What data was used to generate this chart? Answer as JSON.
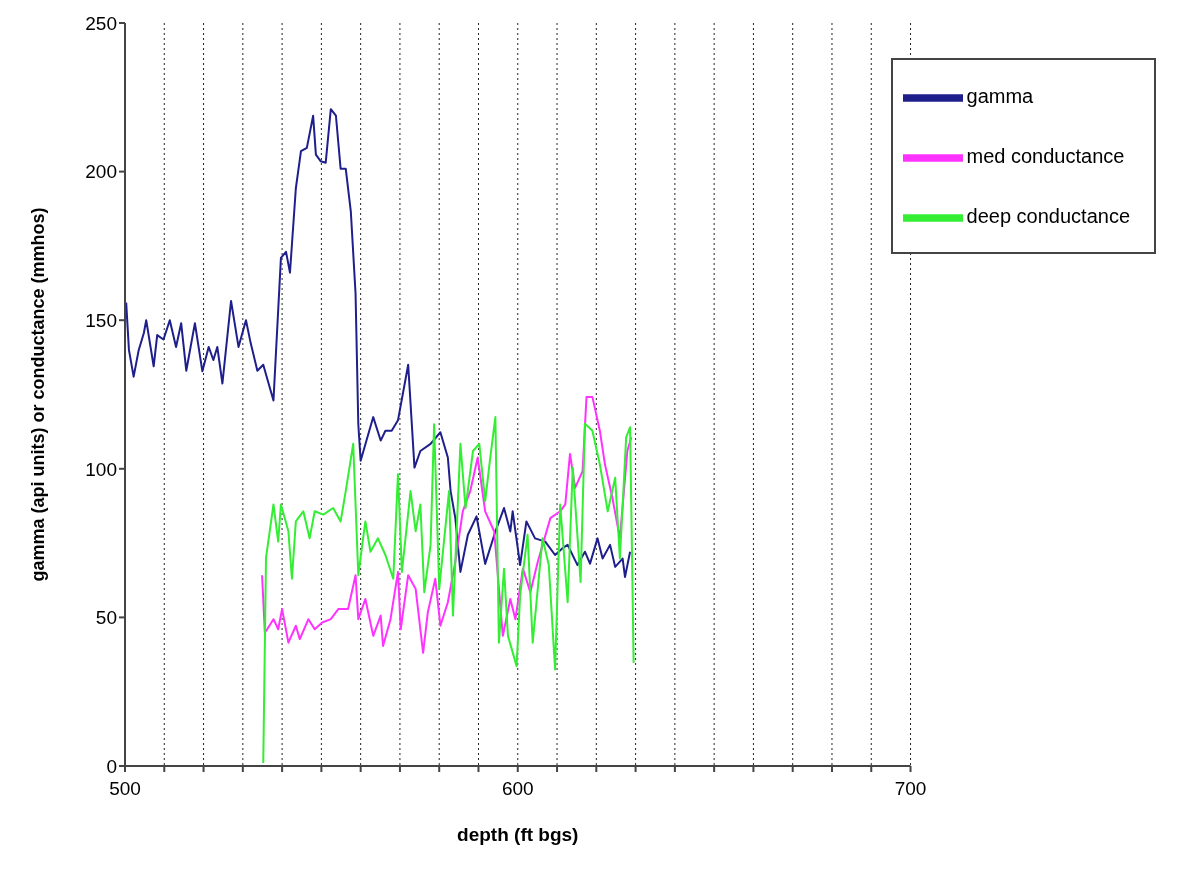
{
  "chart_data": {
    "type": "line",
    "xlabel": "depth (ft bgs)",
    "ylabel": "gamma (api units) or conductance (mmhos)",
    "xlim": [
      500,
      700
    ],
    "xticks": [
      500,
      {
        "value": 510,
        "label": null
      },
      {
        "value": 520,
        "label": null
      },
      {
        "value": 530,
        "label": null
      },
      {
        "value": 540,
        "label": null
      },
      {
        "value": 550,
        "label": null
      },
      {
        "value": 560,
        "label": null
      },
      {
        "value": 570,
        "label": null
      },
      {
        "value": 580,
        "label": null
      },
      {
        "value": 590,
        "label": null
      },
      600,
      {
        "value": 610,
        "label": null
      },
      {
        "value": 620,
        "label": null
      },
      {
        "value": 630,
        "label": null
      },
      {
        "value": 640,
        "label": null
      },
      {
        "value": 650,
        "label": null
      },
      {
        "value": 660,
        "label": null
      },
      {
        "value": 670,
        "label": null
      },
      {
        "value": 680,
        "label": null
      },
      {
        "value": 690,
        "label": null
      },
      700
    ],
    "ylim": [
      0,
      250
    ],
    "yticks": [
      0,
      50,
      100,
      150,
      200,
      250
    ],
    "grid": "x",
    "legend": "top right",
    "marker": "none",
    "line_style": "solid",
    "series": [
      {
        "name": "gamma",
        "color": "#1f1f8c",
        "x": [
          500.3,
          501,
          502.2,
          503.5,
          504.8,
          505.4,
          507.3,
          508.2,
          509.8,
          511.4,
          513,
          514.3,
          515.6,
          517.8,
          519.7,
          521.3,
          522.5,
          523.5,
          524.8,
          527,
          528.9,
          530.8,
          532,
          533.7,
          535.2,
          537.8,
          539.7,
          541,
          542,
          543.5,
          544.8,
          546.3,
          547.9,
          548.6,
          549.8,
          551.1,
          552.4,
          553.7,
          554.9,
          556.2,
          557.5,
          558.7,
          559.4,
          560,
          563.2,
          565.1,
          566.3,
          567.9,
          569.5,
          572.1,
          573.7,
          575.2,
          577.8,
          580.3,
          582.2,
          582.9,
          584.1,
          585.4,
          587.3,
          589.5,
          591.7,
          594.3,
          596.5,
          598.1,
          598.7,
          600.6,
          602.2,
          604.4,
          607,
          609.5,
          611.4,
          612.7,
          615.2,
          617.1,
          618.4,
          620.3,
          621.6,
          623.5,
          624.8,
          626.7,
          627.3,
          628.6
        ],
        "values": [
          155.9,
          140,
          131,
          140,
          145.7,
          150,
          134.5,
          145,
          143.5,
          150,
          141,
          149,
          133,
          149,
          132.8,
          141,
          136.6,
          141,
          128.7,
          156.5,
          141,
          150,
          142.3,
          133,
          135,
          123,
          171,
          173,
          166,
          194.4,
          206.9,
          208,
          218.8,
          205.7,
          203.5,
          203,
          221,
          218.8,
          201,
          201,
          186.5,
          159,
          115,
          102.7,
          117.4,
          109.5,
          112.8,
          112.8,
          116.3,
          135,
          100.4,
          106,
          108.4,
          112.3,
          103.8,
          92.5,
          83.4,
          65.3,
          77.8,
          84,
          68,
          78.9,
          86.8,
          78.9,
          85.7,
          67.6,
          82.3,
          76.6,
          75.5,
          71,
          73.3,
          74.4,
          67.6,
          72.1,
          68.1,
          76.6,
          69.8,
          74.4,
          67,
          69.8,
          63.6,
          72.1
        ]
      },
      {
        "name": "med conductance",
        "color": "#ff33ff",
        "x": [
          534.9,
          535.6,
          536.2,
          537.8,
          539,
          540,
          541.6,
          543.5,
          544.5,
          546.7,
          548.3,
          550.2,
          552.4,
          554.3,
          556.8,
          558.7,
          559.4,
          561.2,
          563.2,
          565.1,
          565.7,
          567.6,
          569.5,
          570.2,
          572.1,
          574,
          575.9,
          577.1,
          579,
          580.3,
          582.2,
          584.1,
          586,
          587.9,
          589.8,
          591.7,
          594,
          596.2,
          598.1,
          599.4,
          601.3,
          603.2,
          605.1,
          608.3,
          610.8,
          612.1,
          613.3,
          614.6,
          616.5,
          617.5,
          619,
          620.9,
          622.2,
          624.1,
          626,
          627.9,
          628.9
        ],
        "values": [
          64.2,
          45,
          46,
          49.4,
          46,
          52.8,
          41.5,
          47.2,
          42.7,
          49.4,
          46,
          48.3,
          49.4,
          52.8,
          52.8,
          64.2,
          49.4,
          56.2,
          43.8,
          50.6,
          40.4,
          49.4,
          65.3,
          46,
          64.2,
          59.6,
          38.1,
          51.7,
          63,
          47.2,
          55.1,
          68.7,
          85.7,
          92.5,
          103.8,
          85.7,
          78.9,
          43.8,
          56.2,
          49.4,
          66.4,
          58.5,
          68.7,
          83.4,
          85.7,
          88,
          105,
          93.6,
          99.2,
          124.2,
          124.2,
          112.8,
          101.5,
          90.2,
          76.6,
          106,
          110.6
        ]
      },
      {
        "name": "deep conductance",
        "color": "#33ee33",
        "x": [
          535.2,
          535.9,
          537.8,
          539,
          539.7,
          541.6,
          542.5,
          543.5,
          545.4,
          547,
          548.3,
          550.5,
          553,
          554.9,
          556.2,
          558.1,
          559.4,
          561.2,
          562.5,
          564.4,
          566.3,
          568.3,
          569.5,
          570.5,
          572.7,
          574,
          575.2,
          576.2,
          577.8,
          578.7,
          580,
          582.5,
          583.5,
          585.4,
          586.7,
          588.6,
          590.2,
          591.7,
          593,
          594.3,
          595.2,
          596.5,
          597.5,
          599.7,
          600.6,
          602.5,
          603.8,
          606.3,
          607.9,
          609.5,
          610.8,
          612.7,
          614,
          616,
          617.1,
          619,
          620.9,
          622.9,
          624.8,
          626,
          627.6,
          628.6,
          629.5
        ],
        "values": [
          1,
          70,
          88,
          75.5,
          88,
          79,
          63,
          82.3,
          85.7,
          76.6,
          85.7,
          84.6,
          86.8,
          82.3,
          92.5,
          108.4,
          64.2,
          82.3,
          72.1,
          76.6,
          71,
          63,
          98.2,
          65.3,
          92.5,
          79,
          88,
          58.5,
          74.4,
          115,
          59.6,
          92.5,
          50.6,
          108.4,
          86.8,
          106,
          108.4,
          89.1,
          103.8,
          117.4,
          41.5,
          66.4,
          43.8,
          33.6,
          57.4,
          77.8,
          41.5,
          76.6,
          67.6,
          32.5,
          88,
          55.1,
          100.4,
          61.9,
          115.2,
          112.8,
          101.5,
          85.7,
          97,
          69.8,
          110.6,
          114,
          34.7
        ]
      }
    ]
  }
}
